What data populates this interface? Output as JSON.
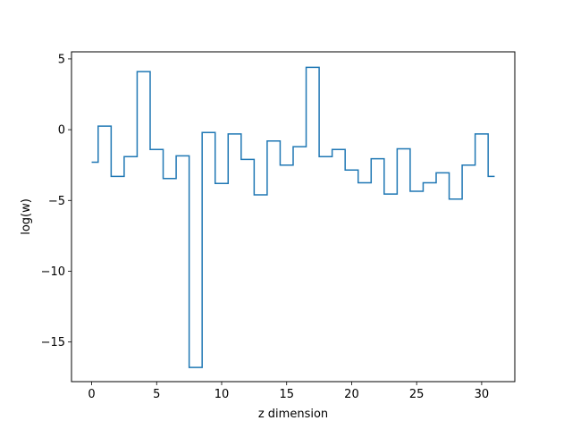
{
  "chart_data": {
    "type": "line",
    "step": "mid",
    "title": "",
    "xlabel": "z dimension",
    "ylabel": "log(w)",
    "xlim": [
      -1.55,
      32.55
    ],
    "ylim": [
      -17.8,
      5.5
    ],
    "xticks": [
      0,
      5,
      10,
      15,
      20,
      25,
      30
    ],
    "yticks": [
      5,
      0,
      -5,
      -10,
      -15
    ],
    "ytick_labels": [
      "5",
      "0",
      "−5",
      "−10",
      "−15"
    ],
    "grid": false,
    "series": [
      {
        "color": "#1f77b4",
        "x": [
          0,
          1,
          2,
          3,
          4,
          5,
          6,
          7,
          8,
          9,
          10,
          11,
          12,
          13,
          14,
          15,
          16,
          17,
          18,
          19,
          20,
          21,
          22,
          23,
          24,
          25,
          26,
          27,
          28,
          29,
          30,
          31
        ],
        "values": [
          -2.3,
          0.25,
          -3.3,
          -1.9,
          4.1,
          -1.4,
          -3.45,
          -1.85,
          -16.8,
          -0.2,
          -3.8,
          -0.3,
          -2.1,
          -4.6,
          -0.8,
          -2.5,
          -1.2,
          4.4,
          -1.9,
          -1.4,
          -2.85,
          -3.75,
          -2.05,
          -4.55,
          -1.35,
          -4.35,
          -3.75,
          -3.05,
          -4.9,
          -2.5,
          -0.3,
          -3.3
        ]
      }
    ]
  }
}
